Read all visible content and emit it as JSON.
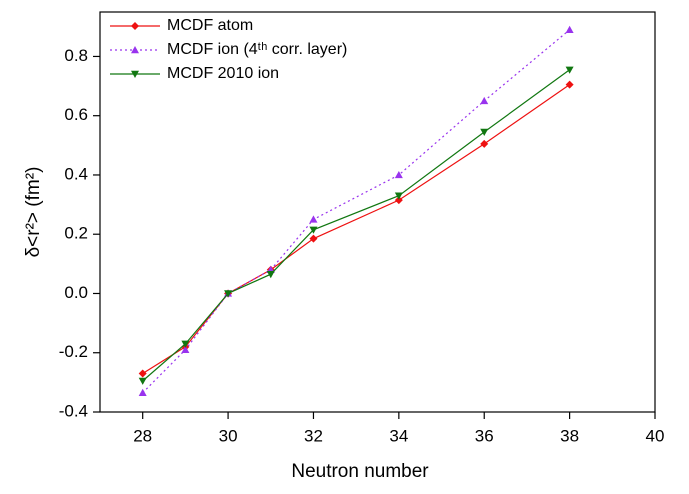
{
  "chart_data": {
    "type": "line",
    "x_label": "Neutron number",
    "y_label": "δ<r²> (fm²)",
    "x": [
      28,
      29,
      30,
      31,
      32,
      34,
      36,
      38
    ],
    "series": [
      {
        "name": "MCDF atom",
        "color": "#ee1111",
        "marker": "diamond",
        "dash": "solid",
        "values": [
          -0.27,
          -0.18,
          0.0,
          0.08,
          0.185,
          0.315,
          0.505,
          0.705
        ]
      },
      {
        "name": "MCDF ion (4ᵗʰ corr. layer)",
        "color": "#9933ee",
        "marker": "triangle-up",
        "dash": "dotted",
        "values": [
          -0.335,
          -0.19,
          0.0,
          0.08,
          0.25,
          0.4,
          0.65,
          0.89
        ]
      },
      {
        "name": "MCDF 2010 ion",
        "color": "#117711",
        "marker": "triangle-down",
        "dash": "solid",
        "values": [
          -0.295,
          -0.17,
          0.0,
          0.065,
          0.215,
          0.33,
          0.545,
          0.755
        ]
      }
    ],
    "xlim": [
      27,
      40
    ],
    "xticks": [
      28,
      30,
      32,
      34,
      36,
      38,
      40
    ],
    "ylim": [
      -0.4,
      0.95
    ],
    "yticks": [
      -0.4,
      -0.2,
      {
        "value": 0,
        "label": "0.0"
      },
      0.2,
      0.4,
      0.6,
      0.8
    ],
    "legend": "top-left"
  }
}
